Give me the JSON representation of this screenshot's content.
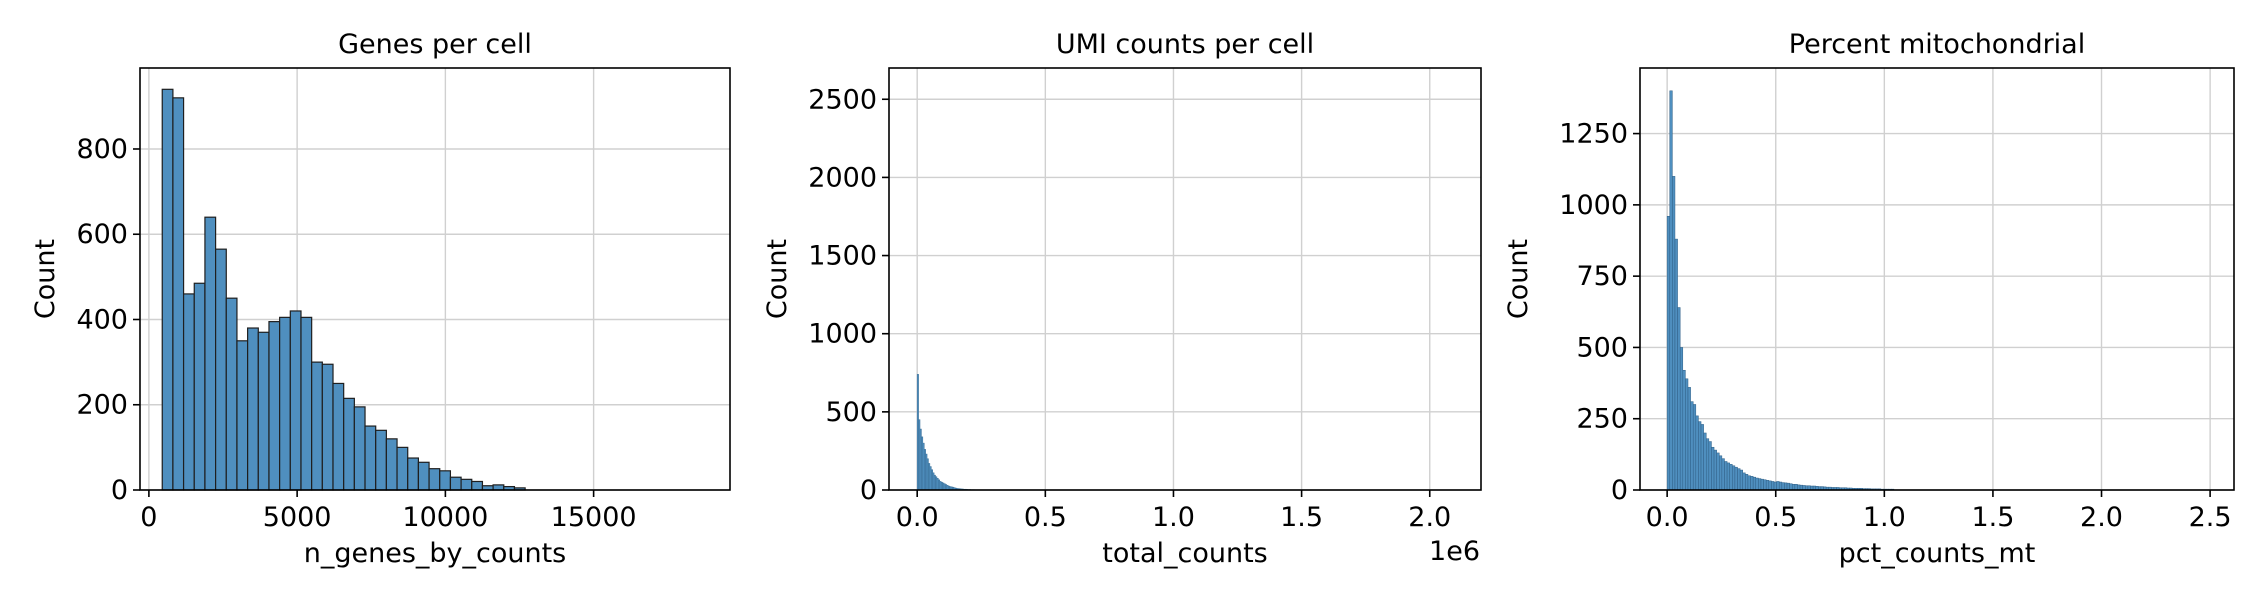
{
  "figure": {
    "panels": [
      {
        "id": "genes",
        "title": "Genes per cell",
        "xlabel": "n_genes_by_counts",
        "ylabel": "Count",
        "offset_label": ""
      },
      {
        "id": "umi",
        "title": "UMI counts per cell",
        "xlabel": "total_counts",
        "ylabel": "Count",
        "offset_label": "1e6"
      },
      {
        "id": "mito",
        "title": "Percent mitochondrial",
        "xlabel": "pct_counts_mt",
        "ylabel": "Count",
        "offset_label": ""
      }
    ]
  },
  "chart_data": [
    {
      "type": "bar",
      "title": "Genes per cell",
      "xlabel": "n_genes_by_counts",
      "ylabel": "Count",
      "xlim": [
        -300,
        19600
      ],
      "ylim": [
        0,
        990
      ],
      "xticks": [
        0,
        5000,
        10000,
        15000
      ],
      "xtick_labels": [
        "0",
        "5000",
        "10000",
        "15000"
      ],
      "yticks": [
        0,
        200,
        400,
        600,
        800
      ],
      "ytick_labels": [
        "0",
        "200",
        "400",
        "600",
        "800"
      ],
      "grid": true,
      "bar_color": "#4f8fbf",
      "edge_color": "#1f1f1f",
      "bin_width": 360,
      "x_start": 450,
      "values": [
        940,
        920,
        460,
        485,
        640,
        565,
        450,
        350,
        380,
        370,
        395,
        405,
        420,
        405,
        300,
        295,
        250,
        215,
        195,
        150,
        140,
        120,
        100,
        75,
        65,
        50,
        45,
        30,
        25,
        20,
        10,
        12,
        8,
        5
      ]
    },
    {
      "type": "bar",
      "title": "UMI counts per cell",
      "xlabel": "total_counts",
      "ylabel": "Count",
      "x_offset_multiplier": "1e6",
      "xlim": [
        -0.11,
        2.2
      ],
      "ylim": [
        0,
        2700
      ],
      "xticks": [
        0.0,
        0.5,
        1.0,
        1.5,
        2.0
      ],
      "xtick_labels": [
        "0.0",
        "0.5",
        "1.0",
        "1.5",
        "2.0"
      ],
      "yticks": [
        0,
        500,
        1000,
        1500,
        2000,
        2500
      ],
      "ytick_labels": [
        "0",
        "500",
        "1000",
        "1500",
        "2000",
        "2500"
      ],
      "grid": true,
      "bar_color": "#4f8fbf",
      "edge_color": "#3a6f98",
      "bin_width": 0.0055,
      "x_start": 0.0,
      "values": [
        740,
        450,
        390,
        340,
        300,
        260,
        230,
        200,
        170,
        150,
        130,
        110,
        95,
        85,
        75,
        65,
        55,
        50,
        45,
        40,
        35,
        30,
        25,
        22,
        20,
        18,
        15,
        12,
        10,
        9,
        8,
        7,
        6,
        5,
        5,
        4,
        3,
        3,
        2,
        2,
        2,
        1,
        1,
        1,
        1,
        1
      ]
    },
    {
      "type": "bar",
      "title": "Percent mitochondrial",
      "xlabel": "pct_counts_mt",
      "ylabel": "Count",
      "xlim": [
        -0.125,
        2.61
      ],
      "ylim": [
        0,
        1480
      ],
      "xticks": [
        0.0,
        0.5,
        1.0,
        1.5,
        2.0,
        2.5
      ],
      "xtick_labels": [
        "0.0",
        "0.5",
        "1.0",
        "1.5",
        "2.0",
        "2.5"
      ],
      "yticks": [
        0,
        250,
        500,
        750,
        1000,
        1250
      ],
      "ytick_labels": [
        "0",
        "250",
        "500",
        "750",
        "1000",
        "1250"
      ],
      "grid": true,
      "bar_color": "#4f8fbf",
      "edge_color": "#2f5f86",
      "bin_width": 0.012,
      "x_start": 0.0,
      "values": [
        960,
        1400,
        1100,
        880,
        640,
        500,
        420,
        390,
        360,
        310,
        300,
        260,
        240,
        230,
        200,
        180,
        170,
        150,
        140,
        130,
        120,
        110,
        100,
        95,
        90,
        85,
        80,
        75,
        70,
        60,
        55,
        50,
        48,
        45,
        42,
        40,
        38,
        36,
        34,
        32,
        30,
        28,
        30,
        28,
        26,
        25,
        24,
        22,
        20,
        20,
        18,
        17,
        16,
        15,
        15,
        14,
        14,
        13,
        12,
        12,
        11,
        10,
        10,
        9,
        9,
        9,
        8,
        8,
        8,
        7,
        7,
        6,
        6,
        6,
        6,
        5,
        5,
        5,
        4,
        4,
        4,
        4,
        3,
        3,
        3,
        3,
        3
      ]
    }
  ]
}
